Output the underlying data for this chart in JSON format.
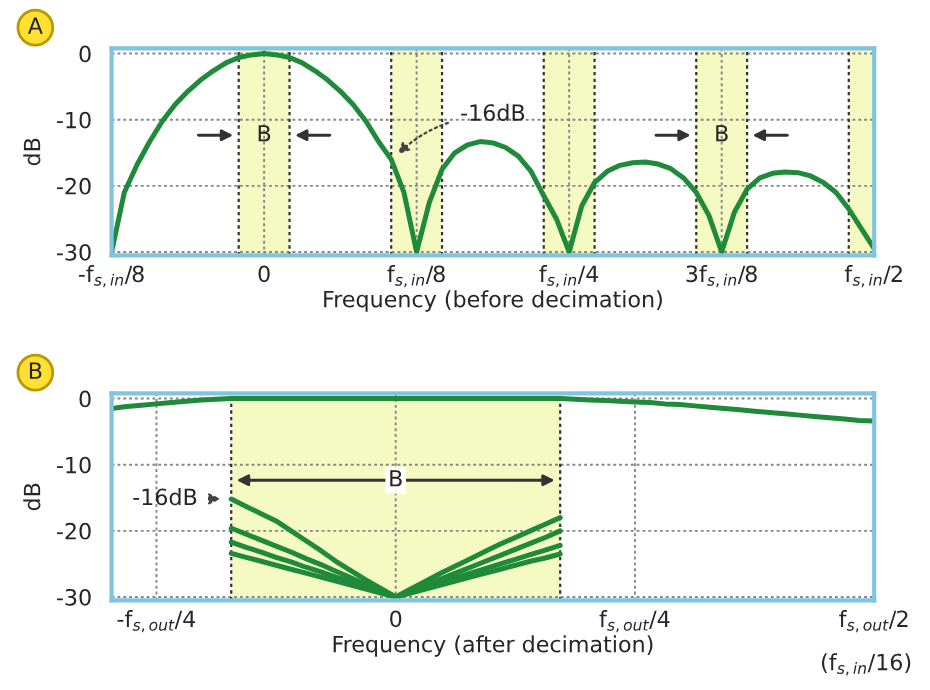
{
  "chart_data": [
    {
      "type": "line",
      "annotations": [
        "A",
        "-16dB",
        "B",
        "B"
      ],
      "xlabel": "Frequency (before decimation)",
      "ylabel": "dB",
      "categories": [
        "-f$_{s,in}$/8",
        null,
        null,
        null,
        null,
        null,
        null,
        null,
        null,
        null,
        null,
        null,
        "0",
        null,
        null,
        null,
        null,
        null,
        null,
        null,
        null,
        null,
        null,
        null,
        "f$_{s,in}$/8",
        null,
        null,
        null,
        null,
        null,
        null,
        null,
        null,
        null,
        null,
        null,
        "f$_{s,in}$/4",
        null,
        null,
        null,
        null,
        null,
        null,
        null,
        null,
        null,
        null,
        null,
        "3f$_{s,in}$/8",
        null,
        null,
        null,
        null,
        null,
        null,
        null,
        null,
        null,
        null,
        null,
        "f$_{s,in}$/2"
      ],
      "series": [
        {
          "color": "#1e8a3a",
          "values": [
            -30,
            -21,
            -16.8,
            -13.3,
            -10.2,
            -7.7,
            -5.7,
            -4,
            -2.6,
            -1.4,
            -0.6,
            -0.2,
            0,
            -0.2,
            -0.6,
            -1.4,
            -2.6,
            -4,
            -5.7,
            -7.7,
            -10.2,
            -13.3,
            -16,
            -21,
            -30,
            -22.5,
            -17.5,
            -15,
            -13.8,
            -13.3,
            -13.5,
            -14.2,
            -15.5,
            -17.8,
            -21.5,
            -25,
            -30,
            -23,
            -19.5,
            -17.8,
            -16.9,
            -16.5,
            -16.4,
            -16.7,
            -17.4,
            -18.8,
            -21,
            -24.5,
            -30,
            -24,
            -20.5,
            -18.8,
            -18.1,
            -17.9,
            -18,
            -18.5,
            -19.5,
            -21,
            -23.5,
            -26.5,
            -29.5
          ]
        }
      ],
      "ylim": [
        -30.5,
        0.8
      ],
      "yticks": [
        0,
        -10,
        -20,
        -30
      ],
      "grid": true
    },
    {
      "type": "line",
      "annotations": [
        "B",
        "-16dB",
        "B",
        "(f$_{s,in}$/16)"
      ],
      "xlabel": "Frequency (after decimation)",
      "ylabel": "dB",
      "categories": [
        null,
        null,
        null,
        "-f$_{s,out}$/4",
        null,
        null,
        null,
        null,
        null,
        null,
        null,
        null,
        null,
        null,
        null,
        null,
        null,
        null,
        null,
        "0",
        null,
        null,
        null,
        null,
        null,
        null,
        null,
        null,
        null,
        null,
        null,
        null,
        null,
        null,
        null,
        "f$_{s,out}$/4",
        null,
        null,
        null,
        null,
        null,
        null,
        null,
        null,
        null,
        null,
        null,
        null,
        null,
        null,
        null,
        "f$_{s,out}$/2"
      ],
      "series": [
        {
          "color": "#1e8a3a",
          "values": [
            -1.5,
            -1.2,
            -1,
            -0.8,
            -0.6,
            -0.4,
            -0.2,
            -0.1,
            0,
            0,
            0,
            0,
            0,
            0,
            0,
            0,
            0,
            0,
            0,
            0,
            0,
            0,
            0,
            0,
            0,
            0,
            0,
            0,
            0,
            0,
            0,
            -0.1,
            -0.2,
            -0.3,
            -0.4,
            -0.5,
            -0.6,
            -0.8,
            -0.9,
            -1.1,
            -1.3,
            -1.5,
            -1.7,
            -1.9,
            -2.1,
            -2.3,
            -2.5,
            -2.7,
            -2.9,
            -3.1,
            -3.3,
            -3.4
          ]
        },
        {
          "color": "#1e8a3a",
          "values": [
            null,
            null,
            null,
            null,
            null,
            null,
            null,
            null,
            -15.2,
            -16.3,
            -17.4,
            -18.5,
            -20,
            -21.5,
            -23,
            -24.6,
            -26,
            -27.4,
            -28.7,
            -30,
            -28.8,
            -27.6,
            -26.4,
            -25.3,
            -24.2,
            -23.1,
            -22,
            -21,
            -20,
            -19,
            -18,
            null,
            null,
            null,
            null,
            null,
            null,
            null,
            null,
            null,
            null,
            null,
            null,
            null,
            null,
            null,
            null,
            null,
            null,
            null,
            null,
            null
          ]
        },
        {
          "color": "#1e8a3a",
          "values": [
            null,
            null,
            null,
            null,
            null,
            null,
            null,
            null,
            -19.6,
            -20.5,
            -21.4,
            -22.3,
            -23.2,
            -24.2,
            -25.1,
            -26.1,
            -27.1,
            -28.1,
            -29,
            -30,
            -29.1,
            -28.2,
            -27.3,
            -26.4,
            -25.5,
            -24.6,
            -23.7,
            -22.8,
            -21.9,
            -21,
            -20,
            null,
            null,
            null,
            null,
            null,
            null,
            null,
            null,
            null,
            null,
            null,
            null,
            null,
            null,
            null,
            null,
            null,
            null,
            null,
            null,
            null
          ]
        },
        {
          "color": "#1e8a3a",
          "values": [
            null,
            null,
            null,
            null,
            null,
            null,
            null,
            null,
            -21.7,
            -22.5,
            -23.2,
            -24,
            -24.7,
            -25.5,
            -26.2,
            -27,
            -27.7,
            -28.5,
            -29.2,
            -30,
            -29.3,
            -28.6,
            -27.8,
            -27.1,
            -26.4,
            -25.7,
            -25,
            -24.3,
            -23.6,
            -22.9,
            -22.2,
            null,
            null,
            null,
            null,
            null,
            null,
            null,
            null,
            null,
            null,
            null,
            null,
            null,
            null,
            null,
            null,
            null,
            null,
            null,
            null,
            null
          ]
        },
        {
          "color": "#1e8a3a",
          "values": [
            null,
            null,
            null,
            null,
            null,
            null,
            null,
            null,
            -23.4,
            -24,
            -24.6,
            -25.2,
            -25.8,
            -26.4,
            -27,
            -27.6,
            -28.2,
            -28.8,
            -29.4,
            -30,
            -29.4,
            -28.8,
            -28.2,
            -27.6,
            -27,
            -26.4,
            -25.8,
            -25.2,
            -24.6,
            -24.1,
            -23.5,
            null,
            null,
            null,
            null,
            null,
            null,
            null,
            null,
            null,
            null,
            null,
            null,
            null,
            null,
            null,
            null,
            null,
            null,
            null,
            null,
            null
          ]
        }
      ],
      "ylim": [
        -30.5,
        0.8
      ],
      "yticks": [
        0,
        -10,
        -20,
        -30
      ],
      "grid": true
    }
  ]
}
